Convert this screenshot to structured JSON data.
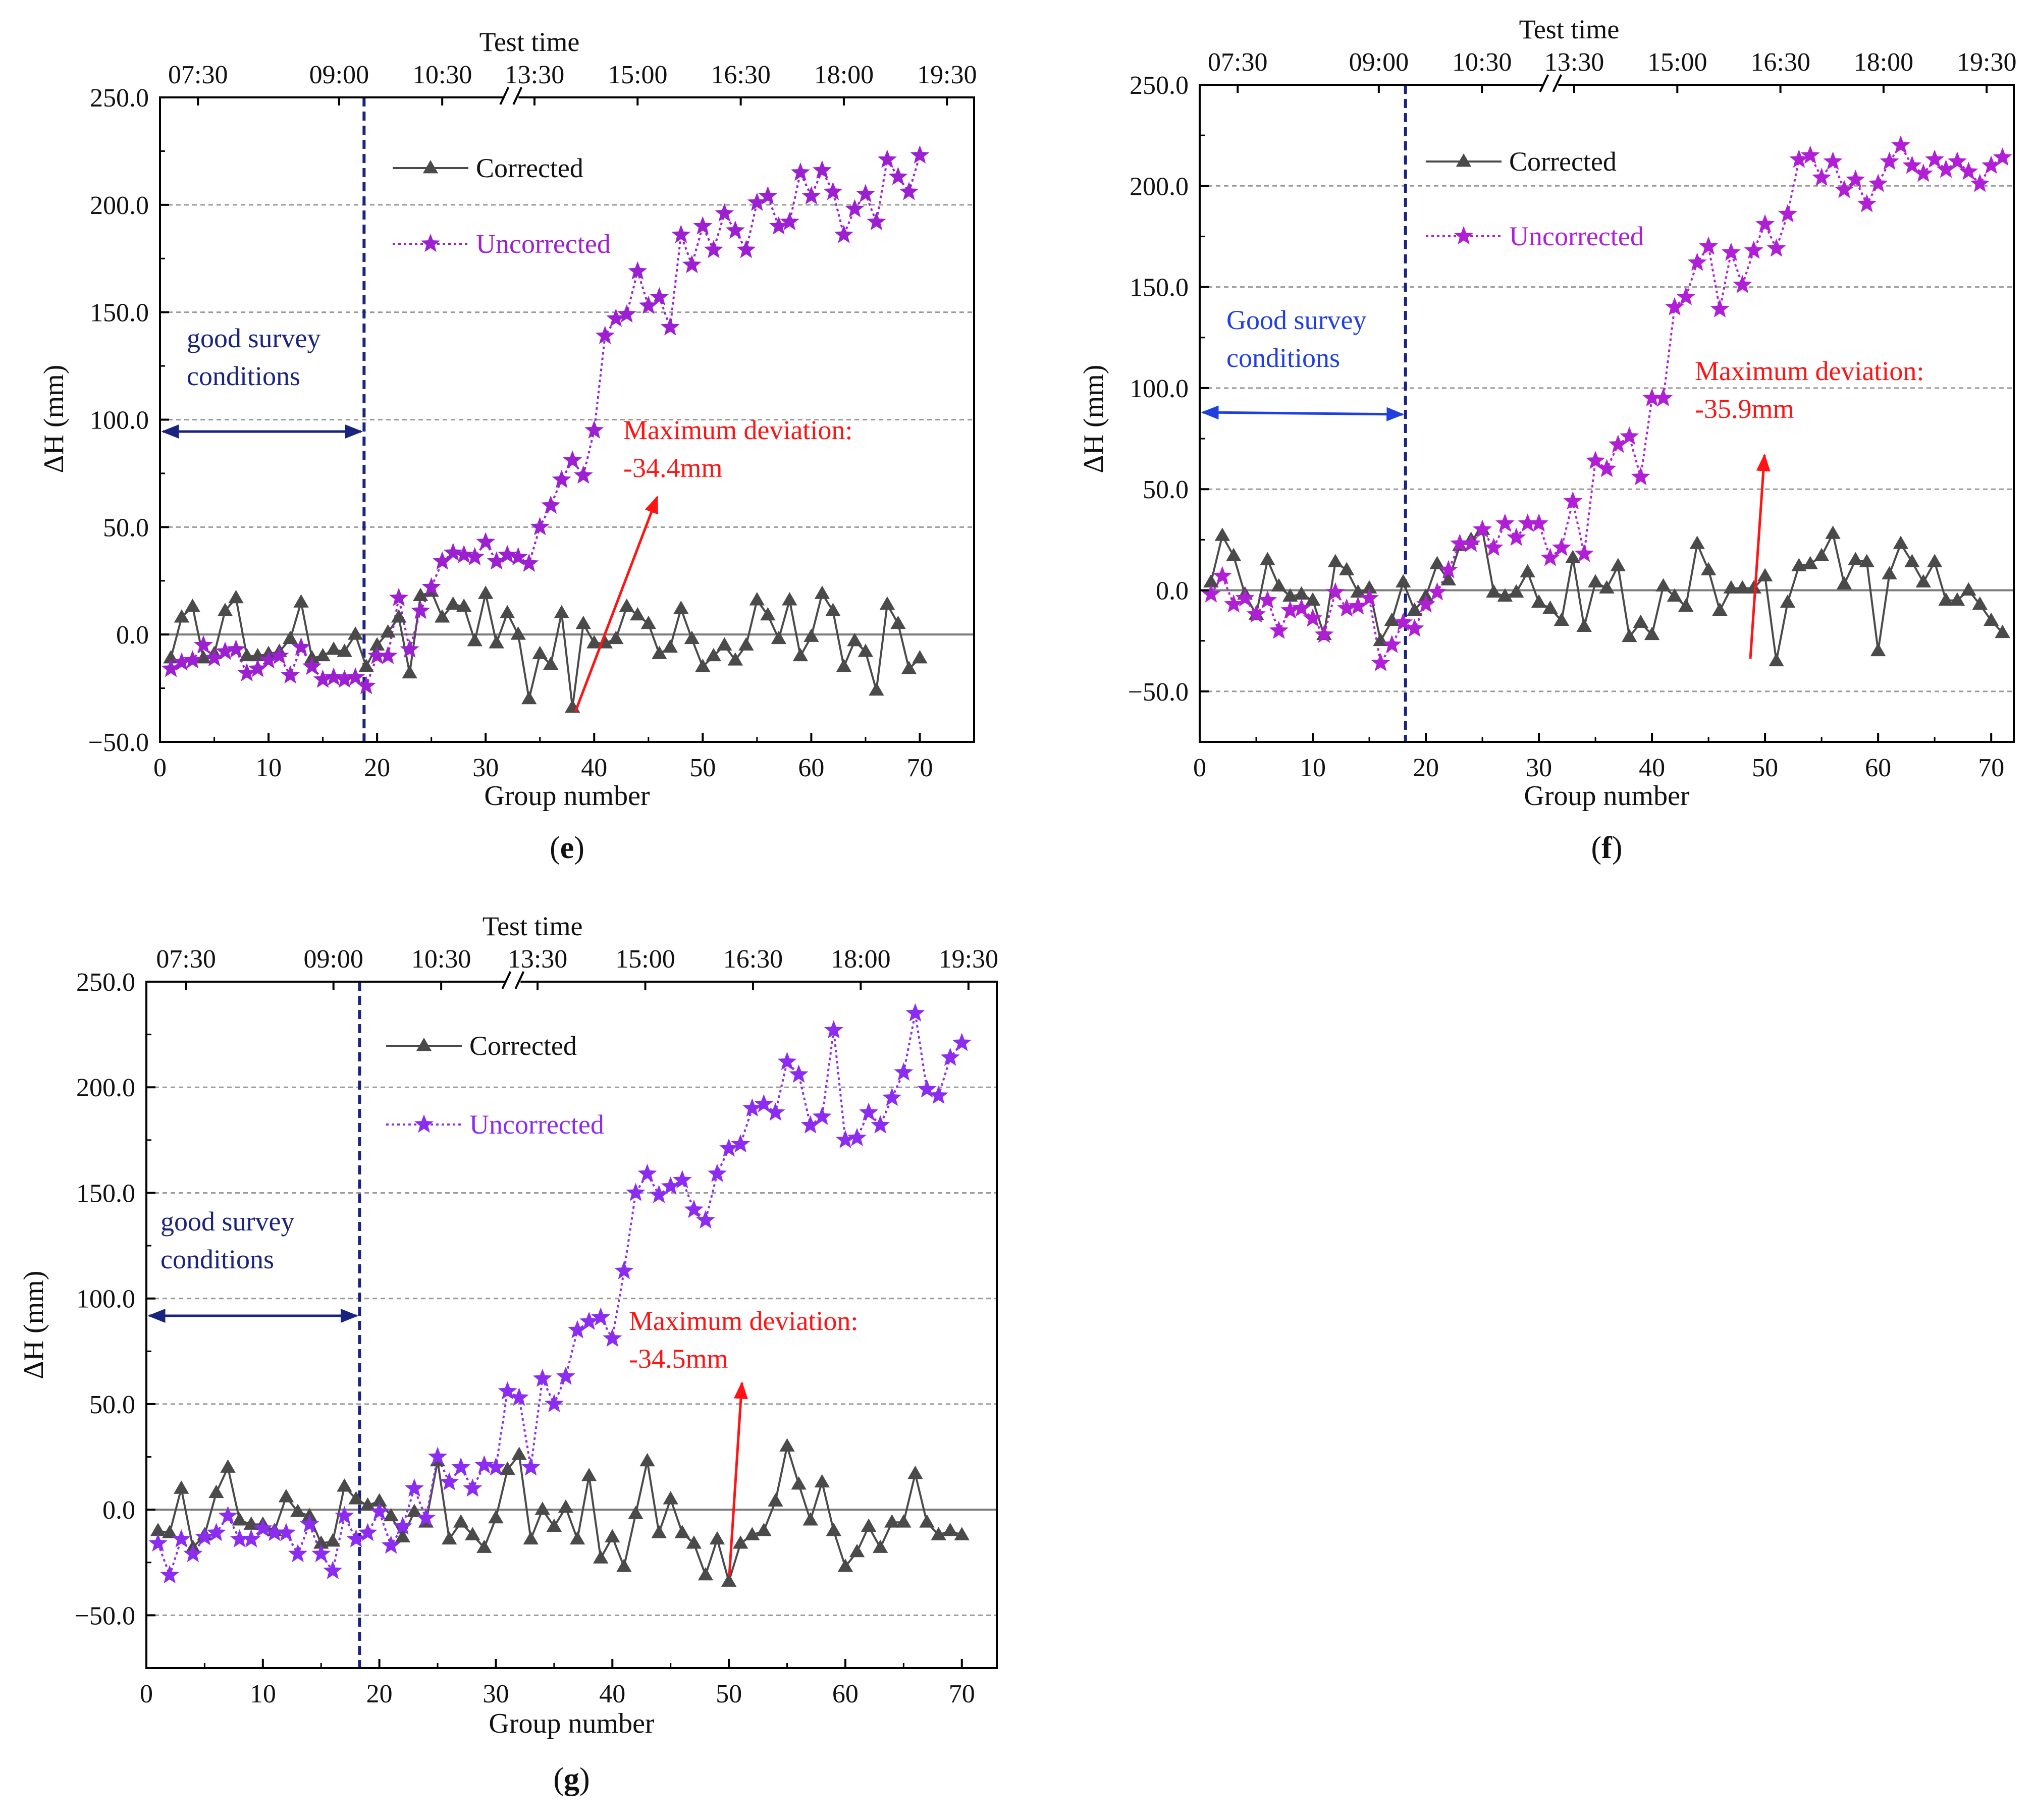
{
  "chart_data": [
    {
      "type": "line",
      "panel_label": "(e)",
      "panel_letter": "e",
      "top_axis_title": "Test time",
      "top_ticks": [
        "07:30",
        "09:00",
        "10:30",
        "13:30",
        "15:00",
        "16:30",
        "18:00",
        "19:30"
      ],
      "xlabel": "Group number",
      "ylabel": "ΔH (mm)",
      "xlim": [
        0,
        75
      ],
      "ylim": [
        -50,
        250
      ],
      "x_ticks": [
        "0",
        "10",
        "20",
        "30",
        "40",
        "50",
        "60",
        "70"
      ],
      "y_ticks": [
        "−50.0",
        "0.0",
        "50.0",
        "100.0",
        "150.0",
        "200.0",
        "250.0"
      ],
      "grid": "dashed horizontal",
      "legend": {
        "position": "top-left",
        "corrected": "Corrected",
        "uncorrected": "Uncorrected"
      },
      "annotation_region": "good survey conditions",
      "region_lines": [
        "good survey",
        "conditions"
      ],
      "boundary_group": 18.8,
      "max_deviation_lines": [
        "Maximum deviation:",
        "-34.4mm"
      ],
      "max_deviation_group": 38,
      "series": [
        {
          "name": "Corrected",
          "values": [
            -11,
            8,
            13,
            -11,
            -9,
            11,
            17,
            -10,
            -10,
            -9,
            -8,
            -2,
            15,
            -11,
            -10,
            -7,
            -8,
            0,
            -15,
            -5,
            1,
            8,
            -18,
            18,
            20,
            8,
            14,
            13,
            -3,
            19,
            -4,
            10,
            0,
            -30,
            -9,
            -14,
            10,
            -34,
            5,
            -4,
            -4,
            -2,
            13,
            9,
            5,
            -9,
            -6,
            12,
            -2,
            -15,
            -10,
            -5,
            -12,
            -5,
            16,
            9,
            -2,
            16,
            -10,
            -1,
            19,
            11,
            -15,
            -3,
            -8,
            -26,
            14,
            5,
            -16,
            -11
          ]
        },
        {
          "name": "Uncorrected",
          "values": [
            -16,
            -13,
            -12,
            -5,
            -11,
            -8,
            -7,
            -18,
            -16,
            -12,
            -10,
            -19,
            -6,
            -15,
            -21,
            -20,
            -21,
            -20,
            -24,
            -10,
            -10,
            17,
            -7,
            11,
            22,
            34,
            38,
            37,
            36,
            43,
            34,
            37,
            36,
            33,
            50,
            60,
            72,
            81,
            74,
            95,
            139,
            147,
            149,
            169,
            153,
            157,
            143,
            186,
            172,
            190,
            179,
            196,
            188,
            179,
            201,
            204,
            190,
            192,
            215,
            204,
            216,
            206,
            186,
            198,
            205,
            192,
            221,
            213,
            206,
            223
          ]
        }
      ]
    },
    {
      "type": "line",
      "panel_label": "(f)",
      "panel_letter": "f",
      "top_axis_title": "Test time",
      "top_ticks": [
        "07:30",
        "09:00",
        "10:30",
        "13:30",
        "15:00",
        "16:30",
        "18:00",
        "19:30"
      ],
      "xlabel": "Group number",
      "ylabel": "ΔH (mm)",
      "xlim": [
        0,
        72
      ],
      "ylim": [
        -75,
        250
      ],
      "x_ticks": [
        "0",
        "10",
        "20",
        "30",
        "40",
        "50",
        "60",
        "70"
      ],
      "y_ticks": [
        "−50.0",
        "0.0",
        "50.0",
        "100.0",
        "150.0",
        "200.0",
        "250.0"
      ],
      "grid": "dashed horizontal",
      "legend": {
        "position": "top-center",
        "corrected": "Corrected",
        "uncorrected": "Uncorrected"
      },
      "annotation_region": "Good survey conditions",
      "region_lines": [
        "Good survey",
        "conditions"
      ],
      "boundary_group": 18.2,
      "max_deviation_lines": [
        "Maximum deviation:",
        "-35.9mm"
      ],
      "max_deviation_group": 50,
      "series": [
        {
          "name": "Corrected",
          "values": [
            4,
            27,
            17,
            -2,
            -12,
            15,
            2,
            -3,
            -2,
            -5,
            -22,
            14,
            10,
            -1,
            1,
            -25,
            -15,
            4,
            -10,
            -3,
            13,
            5,
            22,
            25,
            30,
            -1,
            -3,
            -1,
            9,
            -6,
            -9,
            -15,
            16,
            -18,
            4,
            1,
            12,
            -23,
            -16,
            -22,
            2,
            -3,
            -8,
            23,
            10,
            -10,
            1,
            1,
            1,
            7,
            -35,
            -6,
            12,
            13,
            17,
            28,
            3,
            15,
            14,
            -30,
            8,
            23,
            14,
            4,
            14,
            -5,
            -5,
            0,
            -7,
            -15,
            -21
          ]
        },
        {
          "name": "Uncorrected",
          "values": [
            -2,
            7,
            -7,
            -4,
            -12,
            -5,
            -20,
            -10,
            -9,
            -14,
            -22,
            -1,
            -9,
            -8,
            -4,
            -36,
            -27,
            -16,
            -19,
            -7,
            -1,
            10,
            23,
            23,
            30,
            21,
            33,
            26,
            33,
            33,
            16,
            21,
            44,
            18,
            64,
            60,
            72,
            76,
            56,
            95,
            95,
            140,
            145,
            162,
            170,
            139,
            167,
            151,
            168,
            181,
            169,
            186,
            213,
            215,
            204,
            212,
            198,
            203,
            191,
            201,
            212,
            220,
            210,
            206,
            213,
            208,
            212,
            207,
            201,
            210,
            214
          ]
        }
      ]
    },
    {
      "type": "line",
      "panel_label": "(g)",
      "panel_letter": "g",
      "top_axis_title": "Test time",
      "top_ticks": [
        "07:30",
        "09:00",
        "10:30",
        "13:30",
        "15:00",
        "16:30",
        "18:00",
        "19:30"
      ],
      "xlabel": "Group number",
      "ylabel": "ΔH (mm)",
      "xlim": [
        0,
        73
      ],
      "ylim": [
        -75,
        250
      ],
      "x_ticks": [
        "0",
        "10",
        "20",
        "30",
        "40",
        "50",
        "60",
        "70"
      ],
      "y_ticks": [
        "−50.0",
        "0.0",
        "50.0",
        "100.0",
        "150.0",
        "200.0",
        "250.0"
      ],
      "grid": "dashed horizontal",
      "legend": {
        "position": "top-left",
        "corrected": "Corrected",
        "uncorrected": "Uncorrected"
      },
      "annotation_region": "good survey conditions",
      "region_lines": [
        "good survey",
        "conditions"
      ],
      "boundary_group": 18.3,
      "max_deviation_lines": [
        "Maximum deviation:",
        "-34.5mm"
      ],
      "max_deviation_group": 50,
      "series": [
        {
          "name": "Corrected",
          "values": [
            -10,
            -11,
            10,
            -18,
            -12,
            8,
            20,
            -5,
            -7,
            -7,
            -10,
            6,
            -1,
            -3,
            -16,
            -15,
            11,
            5,
            2,
            4,
            -3,
            -13,
            -1,
            -6,
            23,
            -14,
            -6,
            -12,
            -18,
            -4,
            19,
            26,
            -14,
            0,
            -8,
            1,
            -14,
            16,
            -23,
            -13,
            -27,
            -2,
            23,
            -11,
            5,
            -11,
            -16,
            -31,
            -14,
            -34,
            -16,
            -12,
            -10,
            4,
            30,
            12,
            -5,
            13,
            -10,
            -27,
            -20,
            -8,
            -18,
            -6,
            -6,
            17,
            -6,
            -12,
            -10,
            -12
          ]
        },
        {
          "name": "Uncorrected",
          "values": [
            -16,
            -31,
            -14,
            -21,
            -13,
            -11,
            -3,
            -14,
            -14,
            -9,
            -11,
            -11,
            -21,
            -7,
            -21,
            -29,
            -3,
            -14,
            -11,
            -1,
            -17,
            -8,
            10,
            -4,
            25,
            13,
            20,
            10,
            21,
            20,
            56,
            53,
            20,
            62,
            50,
            63,
            85,
            89,
            91,
            81,
            113,
            150,
            159,
            149,
            153,
            156,
            142,
            137,
            159,
            171,
            173,
            190,
            192,
            188,
            212,
            206,
            182,
            186,
            227,
            175,
            176,
            188,
            182,
            195,
            207,
            235,
            199,
            196,
            214,
            221
          ]
        }
      ]
    }
  ],
  "colors": {
    "corrected": "#4a4a4a",
    "uncorrected_e": "#9c1fd1",
    "uncorrected_f": "#b01fd6",
    "uncorrected_g": "#8b2cf0",
    "navy": "#1a237e",
    "blue": "#1f3fe0",
    "red": "#ff1414",
    "grid": "#9a9a9a"
  }
}
